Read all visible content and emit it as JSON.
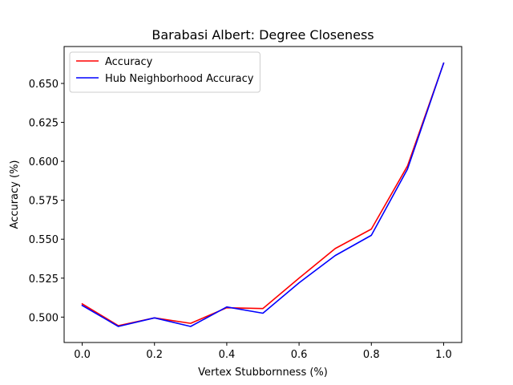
{
  "chart_data": {
    "type": "line",
    "title": "Barabasi Albert: Degree Closeness",
    "xlabel": "Vertex Stubbornness (%)",
    "ylabel": "Accuracy (%)",
    "x": [
      0.0,
      0.1,
      0.2,
      0.3,
      0.4,
      0.5,
      0.6,
      0.7,
      0.8,
      0.9,
      1.0
    ],
    "xlim": [
      -0.05,
      1.05
    ],
    "ylim": [
      0.4837,
      0.6737
    ],
    "xticks": [
      0.0,
      0.2,
      0.4,
      0.6,
      0.8,
      1.0
    ],
    "xtick_labels": [
      "0.0",
      "0.2",
      "0.4",
      "0.6",
      "0.8",
      "1.0"
    ],
    "yticks": [
      0.5,
      0.525,
      0.55,
      0.575,
      0.6,
      0.625,
      0.65
    ],
    "ytick_labels": [
      "0.500",
      "0.525",
      "0.550",
      "0.575",
      "0.600",
      "0.625",
      "0.650"
    ],
    "grid": false,
    "legend_position": "top-left",
    "series": [
      {
        "name": "Accuracy",
        "color": "#ff0000",
        "values": [
          0.5085,
          0.4945,
          0.4995,
          0.496,
          0.506,
          0.5055,
          0.525,
          0.544,
          0.5565,
          0.597,
          0.663
        ]
      },
      {
        "name": "Hub Neighborhood Accuracy",
        "color": "#0000ff",
        "values": [
          0.5075,
          0.494,
          0.4995,
          0.494,
          0.5065,
          0.5025,
          0.522,
          0.5395,
          0.5525,
          0.595,
          0.663
        ]
      }
    ]
  }
}
